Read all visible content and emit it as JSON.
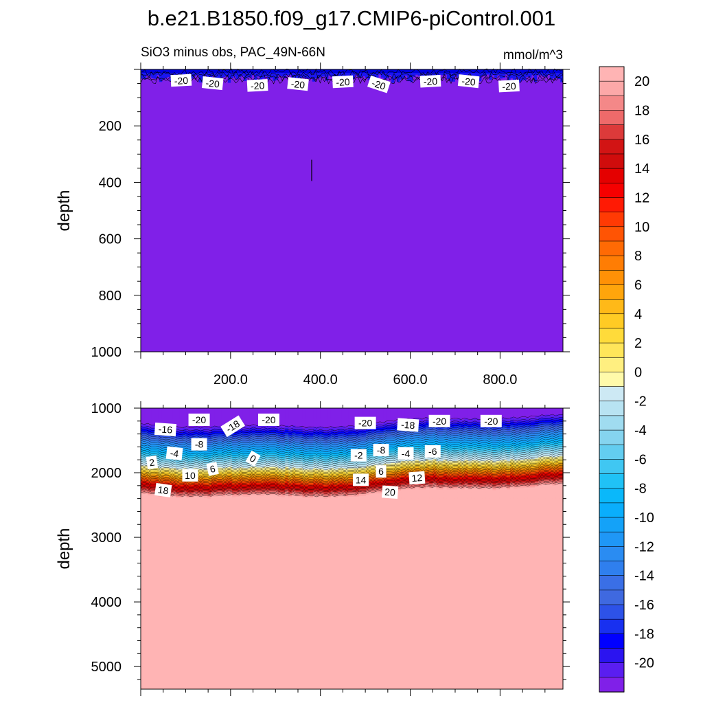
{
  "figure": {
    "title": "b.e21.B1850.f09_g17.CMIP6-piControl.001",
    "subtitle_left": "SiO3 minus obs, PAC_49N-66N",
    "subtitle_right": "mmol/m^3"
  },
  "chart_data": [
    {
      "type": "heatmap",
      "panel": "upper",
      "title": "SiO3 minus obs, PAC_49N-66N",
      "units": "mmol/m^3",
      "ylabel": "depth",
      "xlim": [
        0,
        940
      ],
      "ylim": [
        1000,
        0
      ],
      "y_inverted": true,
      "x_ticks": [
        200,
        400,
        600,
        800
      ],
      "x_tick_labels": [
        "200.0",
        "400.0",
        "600.0",
        "800.0"
      ],
      "y_ticks": [
        200,
        400,
        600,
        800,
        1000
      ],
      "y_tick_labels": [
        "200",
        "400",
        "600",
        "800",
        "1000"
      ],
      "field_value": -21,
      "surface_band_depth": 40,
      "contour_labels": [
        {
          "x": 90,
          "y": 40,
          "text": "-20"
        },
        {
          "x": 160,
          "y": 50,
          "text": "-20"
        },
        {
          "x": 260,
          "y": 58,
          "text": "-20"
        },
        {
          "x": 350,
          "y": 53,
          "text": "-20"
        },
        {
          "x": 450,
          "y": 45,
          "text": "-20"
        },
        {
          "x": 530,
          "y": 54,
          "text": "-20"
        },
        {
          "x": 645,
          "y": 43,
          "text": "-20"
        },
        {
          "x": 730,
          "y": 43,
          "text": "-20"
        },
        {
          "x": 820,
          "y": 60,
          "text": "-20"
        }
      ]
    },
    {
      "type": "heatmap",
      "panel": "lower",
      "ylabel": "depth",
      "xlim": [
        0,
        940
      ],
      "ylim": [
        5350,
        1000
      ],
      "y_inverted": true,
      "y_ticks": [
        1000,
        2000,
        3000,
        4000,
        5000
      ],
      "y_tick_labels": [
        "1000",
        "2000",
        "3000",
        "4000",
        "5000"
      ],
      "profile": {
        "depth": [
          1000,
          1190,
          1280,
          1380,
          1500,
          1640,
          1760,
          1880,
          1990,
          2080,
          2180,
          2250,
          2320,
          5350
        ],
        "value": [
          -21,
          -21,
          -19,
          -16,
          -12,
          -8,
          -4,
          0,
          5,
          10,
          15,
          18,
          21,
          21
        ]
      },
      "contour_labels": [
        {
          "x": 130,
          "y": 1180,
          "text": "-20"
        },
        {
          "x": 205,
          "y": 1280,
          "text": "-18"
        },
        {
          "x": 285,
          "y": 1180,
          "text": "-20"
        },
        {
          "x": 500,
          "y": 1230,
          "text": "-20"
        },
        {
          "x": 595,
          "y": 1260,
          "text": "-18"
        },
        {
          "x": 665,
          "y": 1200,
          "text": "-20"
        },
        {
          "x": 780,
          "y": 1200,
          "text": "-20"
        },
        {
          "x": 55,
          "y": 1330,
          "text": "-16"
        },
        {
          "x": 130,
          "y": 1560,
          "text": "-8"
        },
        {
          "x": 75,
          "y": 1700,
          "text": "-4"
        },
        {
          "x": 25,
          "y": 1840,
          "text": "2"
        },
        {
          "x": 160,
          "y": 1940,
          "text": "6"
        },
        {
          "x": 110,
          "y": 2040,
          "text": "10"
        },
        {
          "x": 50,
          "y": 2270,
          "text": "18"
        },
        {
          "x": 250,
          "y": 1780,
          "text": "0"
        },
        {
          "x": 485,
          "y": 1730,
          "text": "-2"
        },
        {
          "x": 535,
          "y": 1650,
          "text": "-8"
        },
        {
          "x": 590,
          "y": 1700,
          "text": "-4"
        },
        {
          "x": 650,
          "y": 1670,
          "text": "-6"
        },
        {
          "x": 490,
          "y": 2110,
          "text": "14"
        },
        {
          "x": 535,
          "y": 1980,
          "text": "6"
        },
        {
          "x": 615,
          "y": 2080,
          "text": "12"
        },
        {
          "x": 555,
          "y": 2300,
          "text": "20"
        }
      ]
    }
  ],
  "colorbar": {
    "levels": [
      -21,
      -20,
      -19,
      -18,
      -17,
      -16,
      -15,
      -14,
      -13,
      -12,
      -11,
      -10,
      -9,
      -8,
      -7,
      -6,
      -5,
      -4,
      -3,
      -2,
      -1,
      0,
      1,
      2,
      3,
      4,
      5,
      6,
      7,
      8,
      9,
      10,
      11,
      12,
      13,
      14,
      15,
      16,
      17,
      18,
      19,
      20,
      21
    ],
    "colors": [
      "#8020e8",
      "#5a1ef0",
      "#2b14f0",
      "#0000ff",
      "#1830f0",
      "#2d52e8",
      "#3f69e0",
      "#3a6fe6",
      "#2f7fee",
      "#2a8cf2",
      "#1f97f6",
      "#14a2f8",
      "#0aaefc",
      "#0ab8fa",
      "#20c2f6",
      "#40c7f2",
      "#63cdf0",
      "#85d4ef",
      "#a0dcf0",
      "#b8e3f2",
      "#cde9f4",
      "#fffaaa",
      "#ffef80",
      "#ffe65a",
      "#ffdb3a",
      "#ffcb24",
      "#ffb918",
      "#ffa50c",
      "#ff9106",
      "#ff7d04",
      "#ff6a04",
      "#ff5404",
      "#ff3a04",
      "#ff1a04",
      "#f60000",
      "#e40000",
      "#d00c0c",
      "#d21414",
      "#dc3a3a",
      "#ee6a6a",
      "#f48888",
      "#fca8a8",
      "#ffb4b4"
    ],
    "tick_labels": [
      "20",
      "18",
      "16",
      "14",
      "12",
      "10",
      "8",
      "6",
      "4",
      "2",
      "0",
      "-2",
      "-4",
      "-6",
      "-8",
      "-10",
      "-12",
      "-14",
      "-16",
      "-18",
      "-20"
    ]
  }
}
